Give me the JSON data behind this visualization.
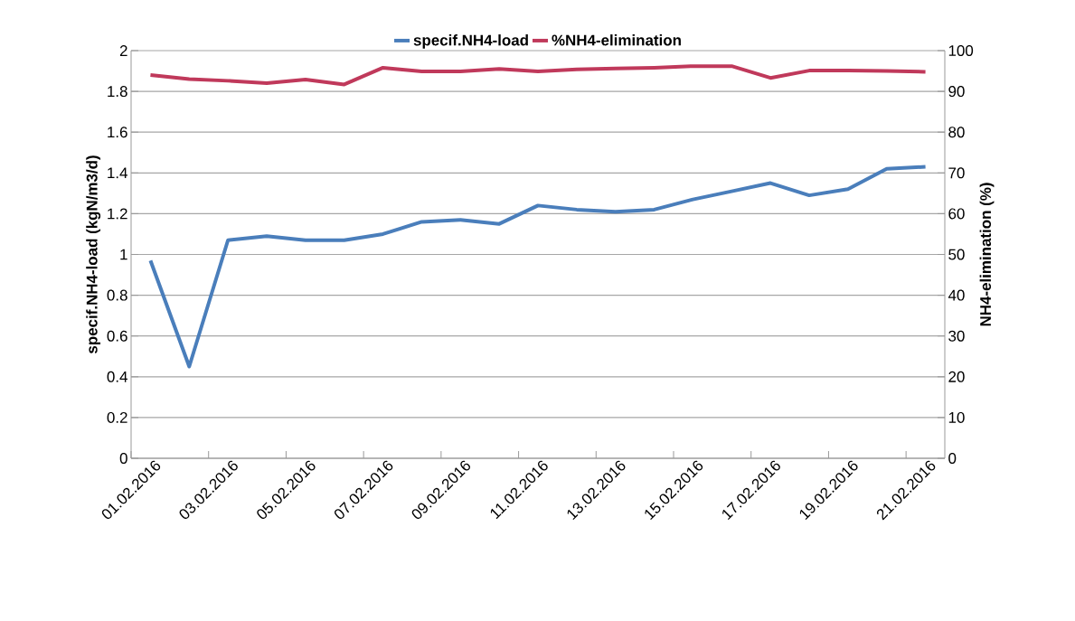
{
  "chart_data": {
    "type": "line",
    "categories": [
      "01.02.2016",
      null,
      "03.02.2016",
      null,
      "05.02.2016",
      null,
      "07.02.2016",
      null,
      "09.02.2016",
      null,
      "11.02.2016",
      null,
      "13.02.2016",
      null,
      "15.02.2016",
      null,
      "17.02.2016",
      null,
      "19.02.2016",
      null,
      "21.02.2016"
    ],
    "ylabel": "specif.NH4-load (kgN/m3/d)",
    "y2label": "NH4-elimination (%)",
    "ylim": [
      0,
      2
    ],
    "yticks": [
      0,
      0.2,
      0.4,
      0.6,
      0.8,
      1,
      1.2,
      1.4,
      1.6,
      1.8,
      2
    ],
    "y2lim": [
      0,
      100
    ],
    "y2ticks": [
      0,
      10,
      20,
      30,
      40,
      50,
      60,
      70,
      80,
      90,
      100
    ],
    "grid": "y",
    "legend": "top",
    "series": [
      {
        "name": "specif.NH4-load",
        "color": "#4a7ebb",
        "values": [
          0.97,
          0.45,
          1.07,
          1.09,
          1.07,
          1.07,
          1.1,
          1.16,
          1.17,
          1.15,
          1.24,
          1.22,
          1.21,
          1.22,
          1.27,
          1.31,
          1.35,
          1.29,
          1.32,
          1.42,
          1.43
        ]
      },
      {
        "name": "%NH4-elimination",
        "color": "#c0395b",
        "axis": "y2",
        "values": [
          94,
          93,
          92.6,
          92,
          92.9,
          91.7,
          95.8,
          94.9,
          94.9,
          95.5,
          94.9,
          95.4,
          95.6,
          95.8,
          96.2,
          96.2,
          93.3,
          95.1,
          95.1,
          95,
          94.8
        ]
      }
    ]
  }
}
